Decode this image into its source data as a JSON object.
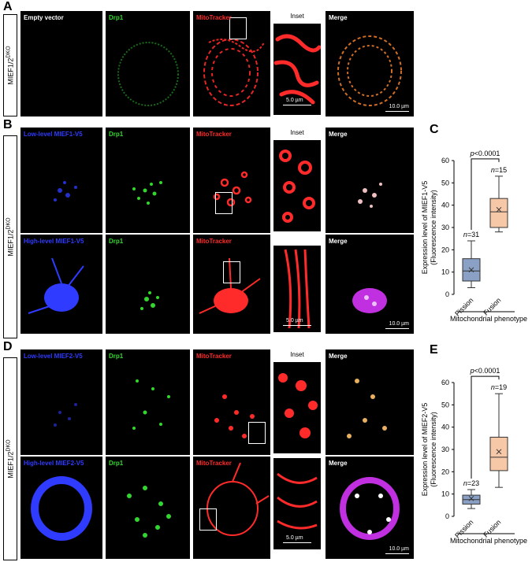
{
  "panels": {
    "A": "A",
    "B": "B",
    "C": "C",
    "D": "D",
    "E": "E"
  },
  "dko": {
    "gene": "MIEF1/2",
    "sup": "DKO"
  },
  "row1": {
    "expr": "Empty vector",
    "drp1": "Drp1",
    "mito": "MitoTracker",
    "inset": "Inset",
    "merge": "Merge",
    "inset_scale": "5.0 µm",
    "merge_scale": "10.0 µm"
  },
  "row2": {
    "expr": "Low-level MIEF1-V5",
    "drp1": "Drp1",
    "mito": "MitoTracker",
    "inset": "Inset",
    "merge": "Merge"
  },
  "row3": {
    "expr": "High-level MIEF1-V5",
    "drp1": "Drp1",
    "mito": "MitoTracker",
    "merge": "Merge",
    "inset_scale": "5.0 µm",
    "merge_scale": "10.0 µm"
  },
  "row4": {
    "expr": "Low-level MIEF2-V5",
    "drp1": "Drp1",
    "mito": "MitoTracker",
    "inset": "Inset",
    "merge": "Merge"
  },
  "row5": {
    "expr": "High-level MIEF2-V5",
    "drp1": "Drp1",
    "mito": "MitoTracker",
    "merge": "Merge",
    "inset_scale": "5.0 µm",
    "merge_scale": "10.0 µm"
  },
  "colors": {
    "blue": "#2f3bff",
    "green": "#33d62e",
    "red": "#ff2a2a",
    "box_fission": "#8aa0c4",
    "box_fusion": "#f6c8a7"
  },
  "chart_data": [
    {
      "type": "box",
      "ylabel": "Expression level of MIEF1-V5",
      "ylabel2": "(Fluorescence intensity)",
      "xlabel": "Mitochondrial phenotype",
      "categories": [
        "Fission",
        "Fusion"
      ],
      "ylim": [
        0,
        60
      ],
      "yticks": [
        0,
        10,
        20,
        30,
        40,
        50,
        60
      ],
      "pvalue": "p<0.0001",
      "n": [
        "n=31",
        "n=15"
      ],
      "boxes": [
        {
          "min": 3,
          "q1": 6,
          "median": 10.5,
          "mean": 11,
          "q3": 16,
          "max": 24
        },
        {
          "min": 28,
          "q1": 30,
          "median": 37,
          "mean": 38,
          "q3": 43,
          "max": 53
        }
      ]
    },
    {
      "type": "box",
      "ylabel": "Expression level of MIEF2-V5",
      "ylabel2": "(Fluorescence intensity)",
      "xlabel": "Mitochondrial phenotype",
      "categories": [
        "Fission",
        "Fusion"
      ],
      "ylim": [
        0,
        60
      ],
      "yticks": [
        0,
        10,
        20,
        30,
        40,
        50,
        60
      ],
      "pvalue": "p<0.0001",
      "n": [
        "n=23",
        "n=19"
      ],
      "boxes": [
        {
          "min": 3.5,
          "q1": 5.5,
          "median": 7.5,
          "mean": 8,
          "q3": 9.5,
          "max": 12
        },
        {
          "min": 13,
          "q1": 20.5,
          "median": 26.5,
          "mean": 29,
          "q3": 35.5,
          "max": 55
        }
      ]
    }
  ]
}
